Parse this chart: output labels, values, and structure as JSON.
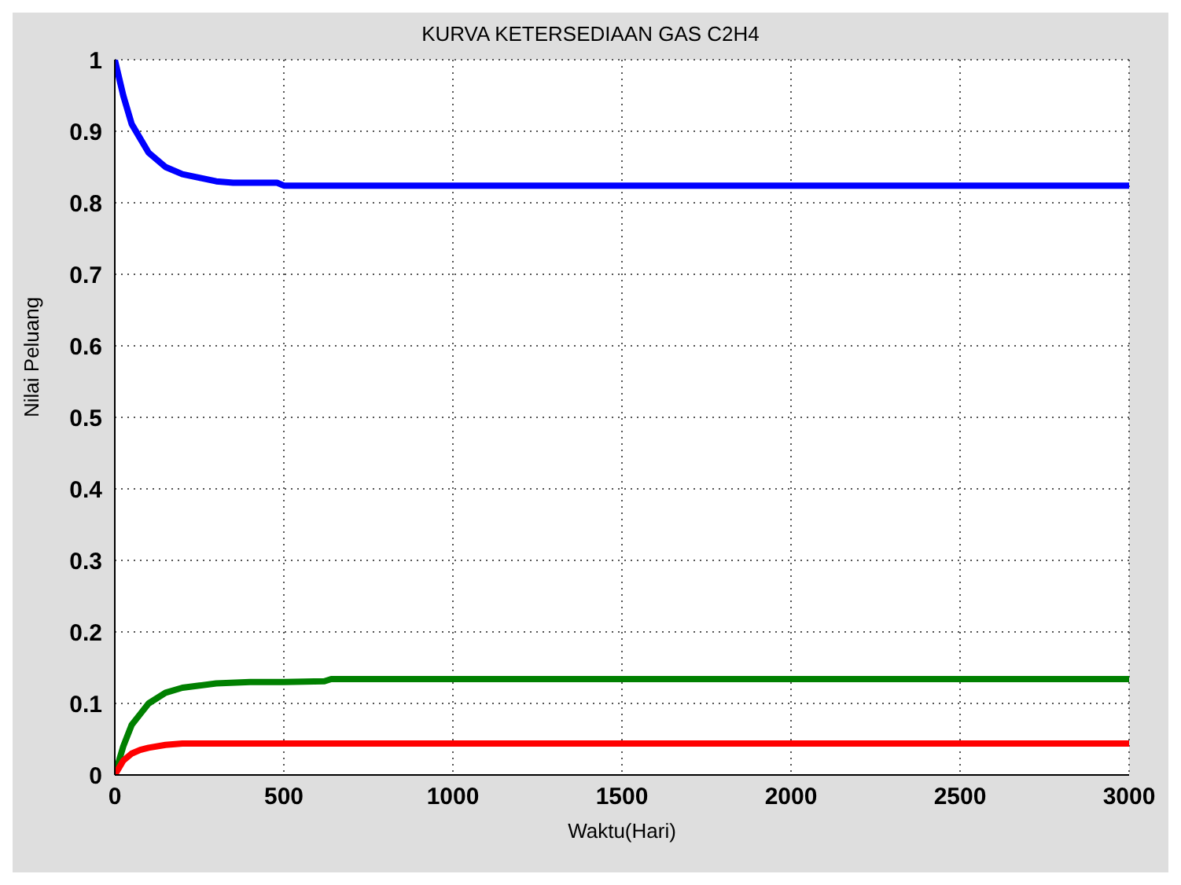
{
  "chart_data": {
    "type": "line",
    "title": "KURVA KETERSEDIAAN GAS C2H4",
    "xlabel": "Waktu(Hari)",
    "ylabel": "Nilai Peluang",
    "series": [
      {
        "color": "#0000ff",
        "x": [
          0,
          25,
          50,
          75,
          100,
          150,
          200,
          250,
          300,
          350,
          480,
          500,
          3000
        ],
        "values": [
          1,
          0.95,
          0.91,
          0.89,
          0.87,
          0.85,
          0.84,
          0.835,
          0.83,
          0.828,
          0.828,
          0.824,
          0.824
        ]
      },
      {
        "color": "#008000",
        "x": [
          0,
          25,
          50,
          75,
          100,
          150,
          200,
          250,
          300,
          400,
          500,
          620,
          640,
          3000
        ],
        "values": [
          0,
          0.04,
          0.07,
          0.085,
          0.1,
          0.115,
          0.122,
          0.125,
          0.128,
          0.13,
          0.13,
          0.131,
          0.134,
          0.134
        ]
      },
      {
        "color": "#ff0000",
        "x": [
          0,
          25,
          50,
          75,
          100,
          150,
          200,
          3000
        ],
        "values": [
          0,
          0.02,
          0.03,
          0.035,
          0.038,
          0.042,
          0.044,
          0.044
        ]
      }
    ],
    "xlim": [
      0,
      3000
    ],
    "xticks": [
      0,
      500,
      1000,
      1500,
      2000,
      2500,
      3000
    ],
    "ylim": [
      0,
      1
    ],
    "yticks": [
      0,
      0.1,
      0.2,
      0.3,
      0.4,
      0.5,
      0.6,
      0.7,
      0.8,
      0.9,
      1
    ],
    "grid": true,
    "line_style": "solid",
    "marker": "none"
  }
}
